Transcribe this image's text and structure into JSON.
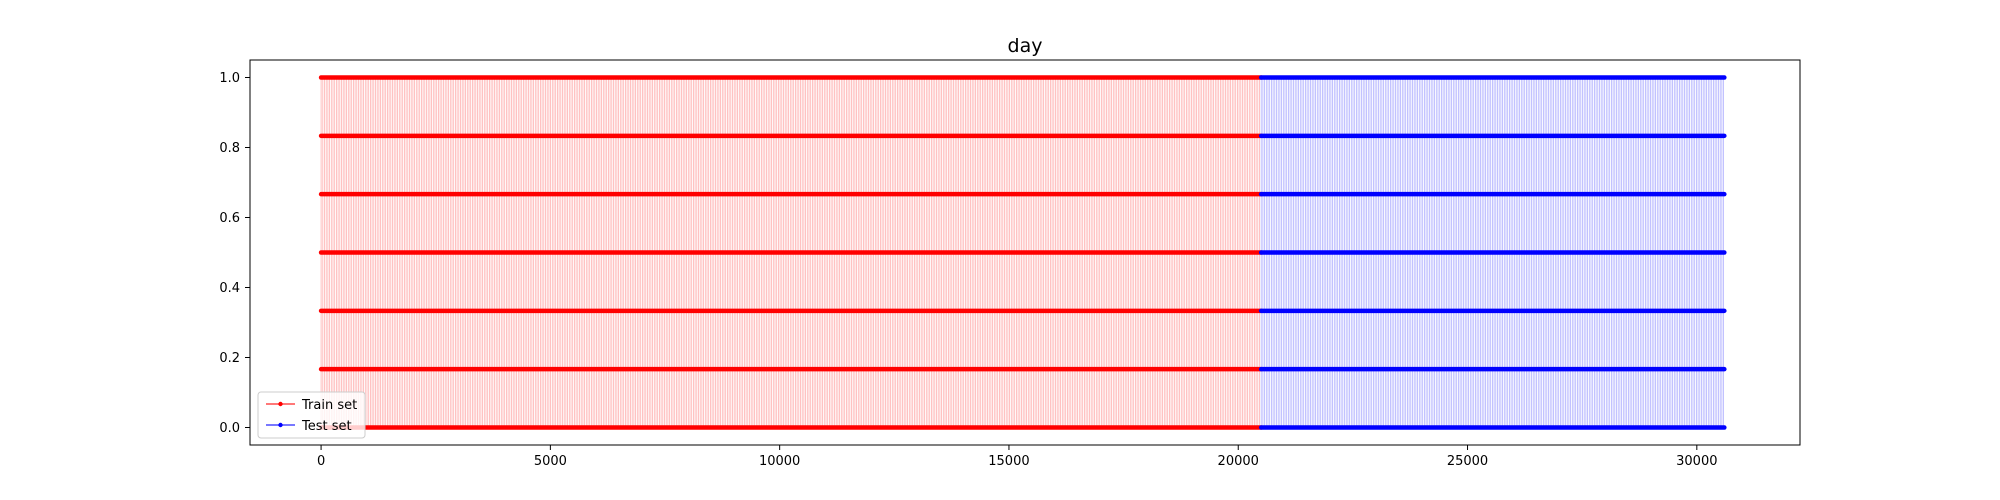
{
  "chart_data": {
    "type": "line",
    "title": "day",
    "xlabel": "",
    "ylabel": "",
    "xlim": [
      -1550,
      32250
    ],
    "ylim": [
      -0.05,
      1.05
    ],
    "x_ticks": [
      0,
      5000,
      10000,
      15000,
      20000,
      25000,
      30000
    ],
    "y_ticks": [
      0.0,
      0.2,
      0.4,
      0.6,
      0.8,
      1.0
    ],
    "x_tick_labels": [
      "0",
      "5000",
      "10000",
      "15000",
      "20000",
      "25000",
      "30000"
    ],
    "y_tick_labels": [
      "0.0",
      "0.2",
      "0.4",
      "0.6",
      "0.8",
      "1.0"
    ],
    "levels": [
      0.0,
      0.1667,
      0.3333,
      0.5,
      0.6667,
      0.8333,
      1.0
    ],
    "grid": false,
    "legend_position": "bottom-left",
    "series": [
      {
        "name": "Train set",
        "color": "#ff0000",
        "x_range": [
          0,
          20500
        ],
        "marker": "point"
      },
      {
        "name": "Test set",
        "color": "#0000ff",
        "x_range": [
          20500,
          30600
        ],
        "marker": "point"
      }
    ]
  }
}
